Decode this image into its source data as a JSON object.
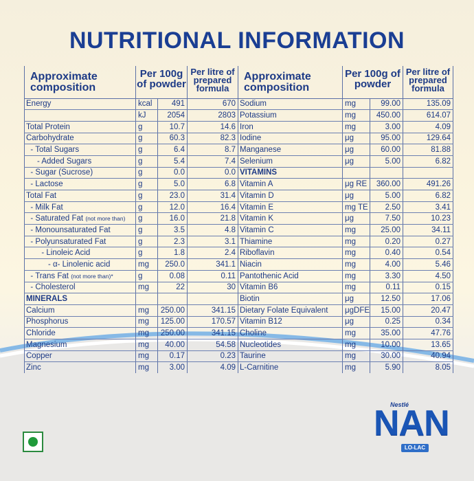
{
  "title": "NUTRITIONAL INFORMATION",
  "headers": {
    "composition": "Approximate composition",
    "per100g": "Per 100g of powder",
    "perlitre": "Per litre of prepared formula"
  },
  "left_rows": [
    {
      "name": "Energy",
      "unit": "kcal",
      "v1": "491",
      "v2": "670"
    },
    {
      "name": "",
      "unit": "kJ",
      "v1": "2054",
      "v2": "2803"
    },
    {
      "name": "Total Protein",
      "unit": "g",
      "v1": "10.7",
      "v2": "14.6"
    },
    {
      "name": "Carbohydrate",
      "unit": "g",
      "v1": "60.3",
      "v2": "82.3"
    },
    {
      "name": "  - Total Sugars",
      "unit": "g",
      "v1": "6.4",
      "v2": "8.7"
    },
    {
      "name": "     - Added Sugars",
      "unit": "g",
      "v1": "5.4",
      "v2": "7.4"
    },
    {
      "name": "  - Sugar (Sucrose)",
      "unit": "g",
      "v1": "0.0",
      "v2": "0.0"
    },
    {
      "name": "  - Lactose",
      "unit": "g",
      "v1": "5.0",
      "v2": "6.8"
    },
    {
      "name": "Total Fat",
      "unit": "g",
      "v1": "23.0",
      "v2": "31.4"
    },
    {
      "name": "  - Milk Fat",
      "unit": "g",
      "v1": "12.0",
      "v2": "16.4"
    },
    {
      "name": "  - Saturated Fat",
      "note": "(not more than)",
      "unit": "g",
      "v1": "16.0",
      "v2": "21.8"
    },
    {
      "name": "  - Monounsaturated Fat",
      "unit": "g",
      "v1": "3.5",
      "v2": "4.8"
    },
    {
      "name": "  - Polyunsaturated Fat",
      "unit": "g",
      "v1": "2.3",
      "v2": "3.1"
    },
    {
      "name": "       - Linoleic Acid",
      "unit": "g",
      "v1": "1.8",
      "v2": "2.4"
    },
    {
      "name": "          - α- Linolenic acid",
      "unit": "mg",
      "v1": "250.0",
      "v2": "341.1"
    },
    {
      "name": "  - Trans Fat",
      "note": "(not more than)*",
      "unit": "g",
      "v1": "0.08",
      "v2": "0.11"
    },
    {
      "name": "  - Cholesterol",
      "unit": "mg",
      "v1": "22",
      "v2": "30"
    },
    {
      "name": "MINERALS",
      "bold": true,
      "unit": "",
      "v1": "",
      "v2": ""
    },
    {
      "name": "Calcium",
      "unit": "mg",
      "v1": "250.00",
      "v2": "341.15"
    },
    {
      "name": "Phosphorus",
      "unit": "mg",
      "v1": "125.00",
      "v2": "170.57"
    },
    {
      "name": "Chloride",
      "unit": "mg",
      "v1": "250.00",
      "v2": "341.15"
    },
    {
      "name": "Magnesium",
      "unit": "mg",
      "v1": "40.00",
      "v2": "54.58"
    },
    {
      "name": "Copper",
      "unit": "mg",
      "v1": "0.17",
      "v2": "0.23"
    },
    {
      "name": "Zinc",
      "unit": "mg",
      "v1": "3.00",
      "v2": "4.09"
    }
  ],
  "right_rows": [
    {
      "name": "Sodium",
      "unit": "mg",
      "v1": "99.00",
      "v2": "135.09"
    },
    {
      "name": "Potassium",
      "unit": "mg",
      "v1": "450.00",
      "v2": "614.07"
    },
    {
      "name": "Iron",
      "unit": "mg",
      "v1": "3.00",
      "v2": "4.09"
    },
    {
      "name": "Iodine",
      "unit": "μg",
      "v1": "95.00",
      "v2": "129.64"
    },
    {
      "name": "Manganese",
      "unit": "μg",
      "v1": "60.00",
      "v2": "81.88"
    },
    {
      "name": "Selenium",
      "unit": "μg",
      "v1": "5.00",
      "v2": "6.82"
    },
    {
      "name": "VITAMINS",
      "bold": true,
      "unit": "",
      "v1": "",
      "v2": ""
    },
    {
      "name": "Vitamin A",
      "unit": "μg RE",
      "v1": "360.00",
      "v2": "491.26"
    },
    {
      "name": "Vitamin D",
      "unit": "μg",
      "v1": "5.00",
      "v2": "6.82"
    },
    {
      "name": "Vitamin E",
      "unit": "mg TE",
      "v1": "2.50",
      "v2": "3.41"
    },
    {
      "name": "Vitamin K",
      "unit": "μg",
      "v1": "7.50",
      "v2": "10.23"
    },
    {
      "name": "Vitamin C",
      "unit": "mg",
      "v1": "25.00",
      "v2": "34.11"
    },
    {
      "name": "Thiamine",
      "unit": "mg",
      "v1": "0.20",
      "v2": "0.27"
    },
    {
      "name": "Riboflavin",
      "unit": "mg",
      "v1": "0.40",
      "v2": "0.54"
    },
    {
      "name": "Niacin",
      "unit": "mg",
      "v1": "4.00",
      "v2": "5.46"
    },
    {
      "name": "Pantothenic Acid",
      "unit": "mg",
      "v1": "3.30",
      "v2": "4.50"
    },
    {
      "name": "Vitamin B6",
      "unit": "mg",
      "v1": "0.11",
      "v2": "0.15"
    },
    {
      "name": "Biotin",
      "unit": "μg",
      "v1": "12.50",
      "v2": "17.06"
    },
    {
      "name": "Dietary Folate Equivalent",
      "unit": "μgDFE",
      "v1": "15.00",
      "v2": "20.47"
    },
    {
      "name": "Vitamin B12",
      "unit": "μg",
      "v1": "0.25",
      "v2": "0.34"
    },
    {
      "name": "Choline",
      "unit": "mg",
      "v1": "35.00",
      "v2": "47.76"
    },
    {
      "name": "Nucleotides",
      "unit": "mg",
      "v1": "10.00",
      "v2": "13.65"
    },
    {
      "name": "Taurine",
      "unit": "mg",
      "v1": "30.00",
      "v2": "40.94"
    },
    {
      "name": "L-Carnitine",
      "unit": "mg",
      "v1": "5.90",
      "v2": "8.05"
    }
  ],
  "logo": {
    "brand": "Nestlé",
    "name": "NAN",
    "variant": "LO-LAC"
  },
  "colors": {
    "text": "#1d3a86",
    "title": "#1a3e93",
    "veg_mark": "#1f9a3a"
  }
}
